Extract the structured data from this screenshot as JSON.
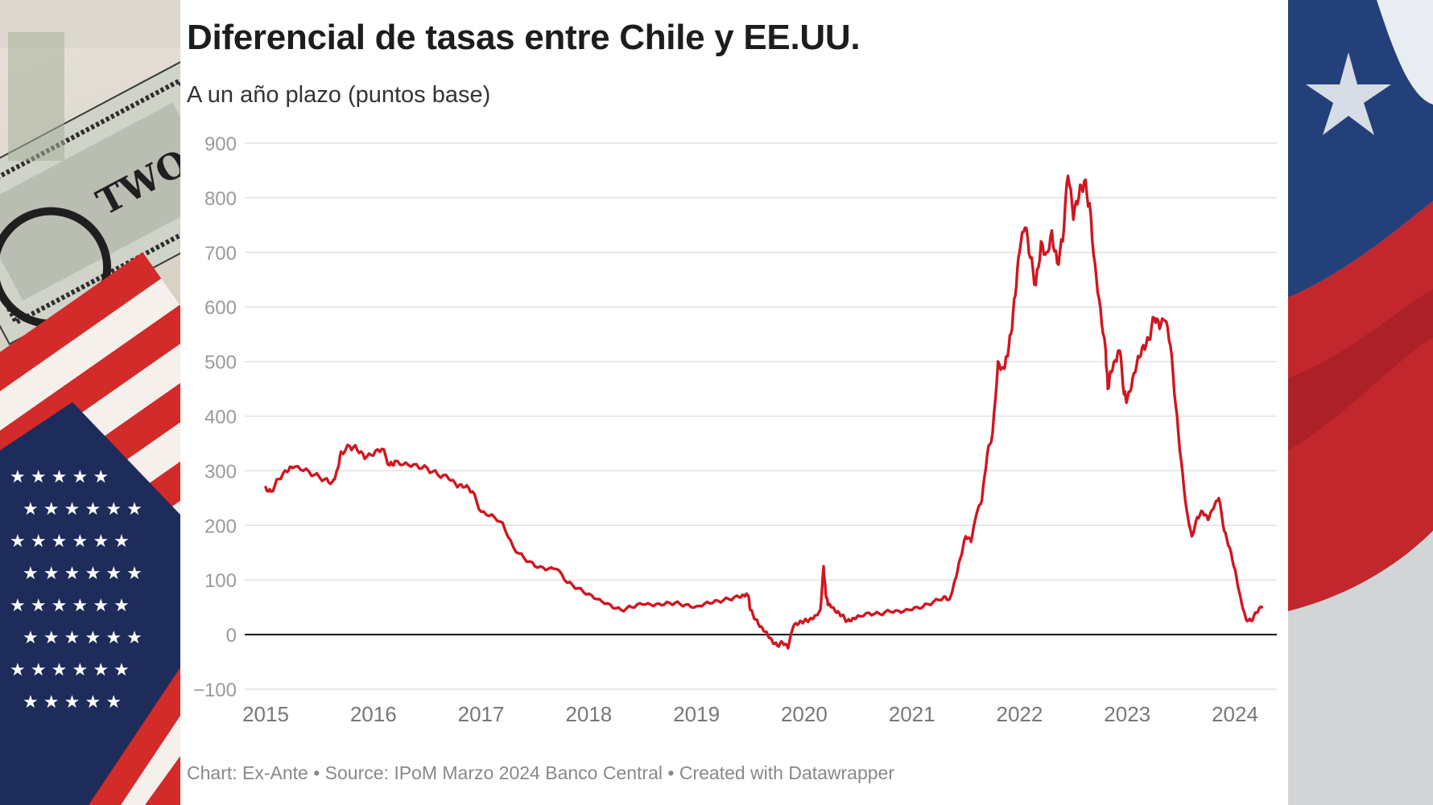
{
  "chart_data": {
    "type": "line",
    "title": "Diferencial de tasas entre Chile y EE.UU.",
    "subtitle": "A un año plazo (puntos base)",
    "footer": "Chart: Ex-Ante • Source: IPoM Marzo 2024 Banco Central • Created with Datawrapper",
    "xlabel": "",
    "ylabel": "",
    "ylim": [
      -100,
      900
    ],
    "xlim": [
      2015,
      2024.33
    ],
    "yticks": [
      "900",
      "800",
      "700",
      "600",
      "500",
      "400",
      "300",
      "200",
      "100",
      "0",
      "−100"
    ],
    "ytick_values": [
      900,
      800,
      700,
      600,
      500,
      400,
      300,
      200,
      100,
      0,
      -100
    ],
    "xticks": [
      "2015",
      "2016",
      "2017",
      "2018",
      "2019",
      "2020",
      "2021",
      "2022",
      "2023",
      "2024"
    ],
    "xtick_values": [
      2015,
      2016,
      2017,
      2018,
      2019,
      2020,
      2021,
      2022,
      2023,
      2024
    ],
    "grid": true,
    "series_color": "#d0161f",
    "series": [
      {
        "x": [
          2015.0,
          2015.05,
          2015.12,
          2015.2,
          2015.25,
          2015.35,
          2015.45,
          2015.55,
          2015.62,
          2015.66,
          2015.7,
          2015.78,
          2015.85,
          2015.92,
          2016.0,
          2016.08,
          2016.15,
          2016.2,
          2016.3,
          2016.4,
          2016.5,
          2016.6,
          2016.7,
          2016.78,
          2016.85,
          2016.92,
          2017.0,
          2017.1,
          2017.2,
          2017.3,
          2017.4,
          2017.5,
          2017.6,
          2017.7,
          2017.8,
          2017.9,
          2018.0,
          2018.1,
          2018.2,
          2018.3,
          2018.4,
          2018.5,
          2018.6,
          2018.7,
          2018.8,
          2018.9,
          2019.0,
          2019.1,
          2019.2,
          2019.3,
          2019.4,
          2019.45,
          2019.48,
          2019.5,
          2019.55,
          2019.6,
          2019.65,
          2019.7,
          2019.75,
          2019.8,
          2019.85,
          2019.9,
          2019.95,
          2020.0,
          2020.05,
          2020.1,
          2020.15,
          2020.18,
          2020.2,
          2020.22,
          2020.25,
          2020.3,
          2020.35,
          2020.4,
          2020.45,
          2020.5,
          2020.6,
          2020.7,
          2020.8,
          2020.9,
          2021.0,
          2021.1,
          2021.2,
          2021.3,
          2021.35,
          2021.4,
          2021.45,
          2021.5,
          2021.55,
          2021.6,
          2021.65,
          2021.7,
          2021.75,
          2021.8,
          2021.85,
          2021.88,
          2021.92,
          2021.96,
          2022.0,
          2022.05,
          2022.1,
          2022.15,
          2022.2,
          2022.25,
          2022.3,
          2022.35,
          2022.4,
          2022.45,
          2022.5,
          2022.55,
          2022.6,
          2022.65,
          2022.7,
          2022.75,
          2022.8,
          2022.82,
          2022.85,
          2022.9,
          2022.93,
          2022.97,
          2023.0,
          2023.05,
          2023.1,
          2023.15,
          2023.2,
          2023.25,
          2023.3,
          2023.35,
          2023.4,
          2023.45,
          2023.5,
          2023.55,
          2023.6,
          2023.65,
          2023.7,
          2023.75,
          2023.8,
          2023.85,
          2023.9,
          2023.95,
          2024.0,
          2024.05,
          2024.1,
          2024.15,
          2024.2,
          2024.25
        ],
        "y": [
          270,
          262,
          285,
          298,
          305,
          300,
          292,
          285,
          280,
          300,
          335,
          345,
          338,
          322,
          328,
          340,
          310,
          318,
          315,
          312,
          305,
          292,
          285,
          270,
          270,
          262,
          225,
          220,
          205,
          160,
          140,
          125,
          118,
          120,
          95,
          85,
          75,
          65,
          55,
          45,
          50,
          55,
          52,
          55,
          58,
          55,
          52,
          60,
          62,
          65,
          68,
          70,
          72,
          45,
          28,
          15,
          5,
          -10,
          -20,
          -15,
          -25,
          15,
          20,
          25,
          28,
          35,
          45,
          125,
          75,
          55,
          50,
          40,
          35,
          25,
          30,
          35,
          40,
          38,
          42,
          40,
          45,
          50,
          60,
          70,
          65,
          100,
          140,
          180,
          170,
          220,
          245,
          330,
          370,
          500,
          490,
          510,
          550,
          620,
          700,
          745,
          690,
          640,
          720,
          700,
          740,
          680,
          720,
          840,
          760,
          800,
          830,
          790,
          680,
          600,
          520,
          450,
          480,
          500,
          520,
          440,
          430,
          470,
          510,
          530,
          540,
          580,
          560,
          575,
          530,
          420,
          320,
          230,
          180,
          215,
          225,
          210,
          230,
          250,
          190,
          160,
          120,
          70,
          30,
          25,
          40,
          50
        ]
      }
    ]
  },
  "decor": {
    "left_panel": "us-dollar-and-us-flag-photo",
    "right_panel": "chile-flag-photo"
  }
}
